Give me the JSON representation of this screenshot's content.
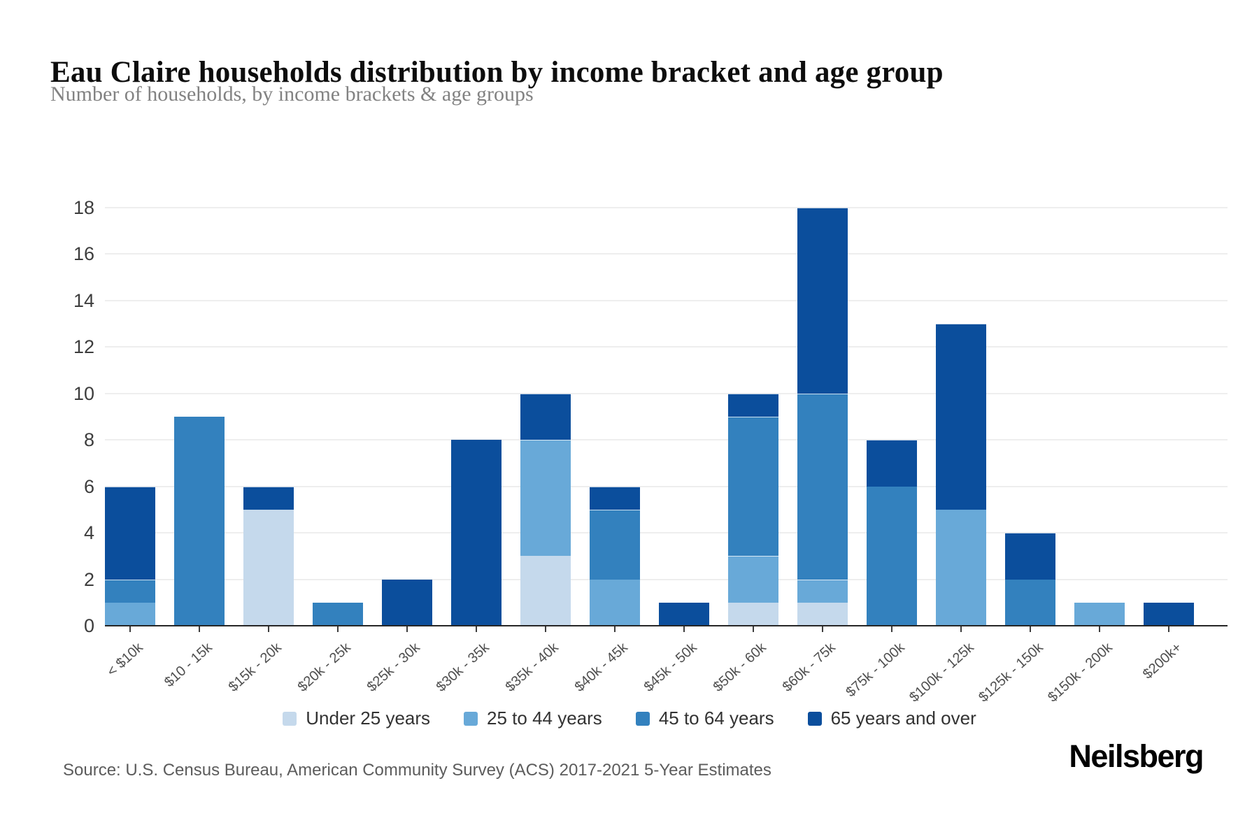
{
  "header": {
    "title": "Eau Claire households distribution by income bracket and age group",
    "subtitle": "Number of households, by income brackets & age groups"
  },
  "chart_data": {
    "type": "bar",
    "stacked": true,
    "title": "Eau Claire households distribution by income bracket and age group",
    "xlabel": "",
    "ylabel": "",
    "ylim": [
      0,
      18
    ],
    "yticks": [
      0,
      2,
      4,
      6,
      8,
      10,
      12,
      14,
      16,
      18
    ],
    "grid": true,
    "legend_position": "bottom",
    "categories": [
      "< $10k",
      "$10 - 15k",
      "$15k - 20k",
      "$20k - 25k",
      "$25k - 30k",
      "$30k - 35k",
      "$35k - 40k",
      "$40k - 45k",
      "$45k - 50k",
      "$50k - 60k",
      "$60k - 75k",
      "$75k - 100k",
      "$100k - 125k",
      "$125k - 150k",
      "$150k - 200k",
      "$200k+"
    ],
    "series": [
      {
        "name": "Under 25 years",
        "color": "#c5d9ec",
        "values": [
          0,
          0,
          5,
          0,
          0,
          0,
          3,
          0,
          0,
          1,
          1,
          0,
          0,
          0,
          0,
          0
        ]
      },
      {
        "name": "25 to 44 years",
        "color": "#68a9d8",
        "values": [
          1,
          0,
          0,
          0,
          0,
          0,
          5,
          2,
          0,
          2,
          1,
          0,
          5,
          0,
          1,
          0
        ]
      },
      {
        "name": "45 to 64 years",
        "color": "#3381be",
        "values": [
          1,
          9,
          0,
          1,
          0,
          0,
          0,
          3,
          0,
          6,
          8,
          6,
          0,
          2,
          0,
          0
        ]
      },
      {
        "name": "65 years and over",
        "color": "#0b4e9c",
        "values": [
          4,
          0,
          1,
          0,
          2,
          8,
          2,
          1,
          1,
          1,
          8,
          2,
          8,
          2,
          0,
          1
        ]
      }
    ],
    "totals": [
      6,
      9,
      6,
      1,
      2,
      8,
      10,
      6,
      1,
      10,
      18,
      8,
      13,
      4,
      1,
      1
    ]
  },
  "footer": {
    "source": "Source: U.S. Census Bureau, American Community Survey (ACS) 2017-2021 5-Year Estimates",
    "brand": "Neilsberg"
  }
}
